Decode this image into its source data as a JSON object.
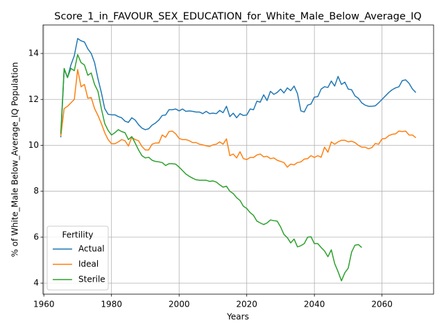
{
  "chart_data": {
    "type": "line",
    "title": "Score_1_in_FAVOUR_SEX_EDUCATION_for_White_Male_Below_Average_IQ",
    "xlabel": "Years",
    "ylabel": "% of White_Male Below_Average_IQ Population",
    "legend_title": "Fertility",
    "legend_loc": "lower left",
    "grid": true,
    "x": [
      1965,
      1966,
      1967,
      1968,
      1969,
      1970,
      1971,
      1972,
      1973,
      1974,
      1975,
      1976,
      1977,
      1978,
      1979,
      1980,
      1981,
      1982,
      1983,
      1984,
      1985,
      1986,
      1987,
      1988,
      1989,
      1990,
      1991,
      1992,
      1993,
      1994,
      1995,
      1996,
      1997,
      1998,
      1999,
      2000,
      2001,
      2002,
      2003,
      2004,
      2005,
      2006,
      2007,
      2008,
      2009,
      2010,
      2011,
      2012,
      2013,
      2014,
      2015,
      2016,
      2017,
      2018,
      2019,
      2020,
      2021,
      2022,
      2023,
      2024,
      2025,
      2026,
      2027,
      2028,
      2029,
      2030,
      2031,
      2032,
      2033,
      2034,
      2035,
      2036,
      2037,
      2038,
      2039,
      2040,
      2041,
      2042,
      2043,
      2044,
      2045,
      2046,
      2047,
      2048,
      2049,
      2050,
      2051,
      2052,
      2053,
      2054,
      2055,
      2056,
      2057,
      2058,
      2059,
      2060,
      2061,
      2062,
      2063,
      2064,
      2065,
      2066,
      2067,
      2068,
      2069,
      2070
    ],
    "series": [
      {
        "name": "Actual",
        "color": "#1f77b4",
        "values": [
          10.35,
          13.3,
          12.95,
          13.5,
          13.9,
          14.65,
          14.55,
          14.5,
          14.2,
          14.0,
          13.6,
          12.9,
          12.3,
          11.6,
          11.35,
          11.33,
          11.33,
          11.25,
          11.2,
          11.05,
          11.0,
          11.2,
          11.1,
          10.9,
          10.75,
          10.68,
          10.72,
          10.88,
          10.97,
          11.1,
          11.3,
          11.32,
          11.55,
          11.55,
          11.58,
          11.5,
          11.58,
          11.48,
          11.5,
          11.48,
          11.45,
          11.45,
          11.38,
          11.48,
          11.38,
          11.4,
          11.38,
          11.52,
          11.42,
          11.7,
          11.25,
          11.4,
          11.2,
          11.38,
          11.3,
          11.32,
          11.58,
          11.55,
          11.92,
          11.88,
          12.2,
          11.95,
          12.35,
          12.22,
          12.3,
          12.45,
          12.28,
          12.5,
          12.38,
          12.58,
          12.25,
          11.5,
          11.45,
          11.75,
          11.8,
          12.1,
          12.12,
          12.45,
          12.55,
          12.52,
          12.8,
          12.58,
          13.0,
          12.65,
          12.75,
          12.45,
          12.42,
          12.15,
          12.05,
          11.85,
          11.75,
          11.7,
          11.7,
          11.72,
          11.85,
          12.0,
          12.15,
          12.3,
          12.42,
          12.5,
          12.55,
          12.82,
          12.85,
          12.7,
          12.45,
          12.3
        ]
      },
      {
        "name": "Ideal",
        "color": "#ff7f0e",
        "values": [
          10.4,
          11.6,
          11.7,
          11.85,
          12.0,
          13.3,
          12.55,
          12.65,
          12.05,
          12.08,
          11.6,
          11.3,
          10.95,
          10.55,
          10.25,
          10.07,
          10.07,
          10.15,
          10.25,
          10.2,
          9.97,
          10.35,
          10.25,
          10.2,
          9.95,
          9.8,
          9.8,
          10.05,
          10.1,
          10.1,
          10.45,
          10.35,
          10.6,
          10.62,
          10.5,
          10.3,
          10.25,
          10.25,
          10.2,
          10.12,
          10.12,
          10.05,
          10.02,
          9.98,
          9.95,
          10.02,
          10.05,
          10.15,
          10.05,
          10.28,
          9.55,
          9.62,
          9.45,
          9.72,
          9.42,
          9.38,
          9.47,
          9.47,
          9.58,
          9.62,
          9.5,
          9.52,
          9.42,
          9.45,
          9.35,
          9.3,
          9.25,
          9.05,
          9.18,
          9.15,
          9.25,
          9.28,
          9.4,
          9.42,
          9.55,
          9.47,
          9.55,
          9.48,
          9.92,
          9.7,
          10.15,
          10.05,
          10.15,
          10.22,
          10.22,
          10.15,
          10.18,
          10.12,
          10.0,
          9.92,
          9.92,
          9.85,
          9.9,
          10.08,
          10.05,
          10.28,
          10.3,
          10.42,
          10.48,
          10.5,
          10.62,
          10.6,
          10.62,
          10.45,
          10.45,
          10.33
        ]
      },
      {
        "name": "Sterile",
        "color": "#2ca02c",
        "values": [
          10.5,
          13.35,
          12.95,
          13.35,
          13.25,
          13.95,
          13.6,
          13.5,
          13.05,
          13.15,
          12.65,
          12.35,
          11.6,
          10.95,
          10.65,
          10.45,
          10.55,
          10.68,
          10.6,
          10.55,
          10.25,
          10.38,
          10.1,
          9.8,
          9.55,
          9.45,
          9.48,
          9.35,
          9.3,
          9.28,
          9.25,
          9.12,
          9.2,
          9.2,
          9.18,
          9.05,
          8.9,
          8.75,
          8.65,
          8.57,
          8.5,
          8.48,
          8.48,
          8.48,
          8.43,
          8.45,
          8.4,
          8.28,
          8.18,
          8.22,
          8.0,
          7.9,
          7.72,
          7.6,
          7.35,
          7.25,
          7.07,
          6.95,
          6.7,
          6.62,
          6.55,
          6.62,
          6.75,
          6.72,
          6.7,
          6.45,
          6.12,
          5.98,
          5.75,
          5.92,
          5.58,
          5.63,
          5.72,
          6.0,
          6.02,
          5.72,
          5.72,
          5.55,
          5.4,
          5.15,
          5.45,
          4.85,
          4.5,
          4.1,
          4.45,
          4.65,
          5.35,
          5.65,
          5.68,
          5.55,
          null,
          null,
          null,
          null,
          null,
          null,
          null,
          null,
          null,
          null,
          null,
          null,
          null,
          null,
          null,
          null
        ]
      }
    ],
    "xlim": [
      1959.75,
      2075.25
    ],
    "xticks": [
      1960,
      1980,
      2000,
      2020,
      2040,
      2060
    ],
    "ylim": [
      3.52,
      15.24
    ],
    "yticks": [
      4,
      6,
      8,
      10,
      12,
      14
    ]
  }
}
